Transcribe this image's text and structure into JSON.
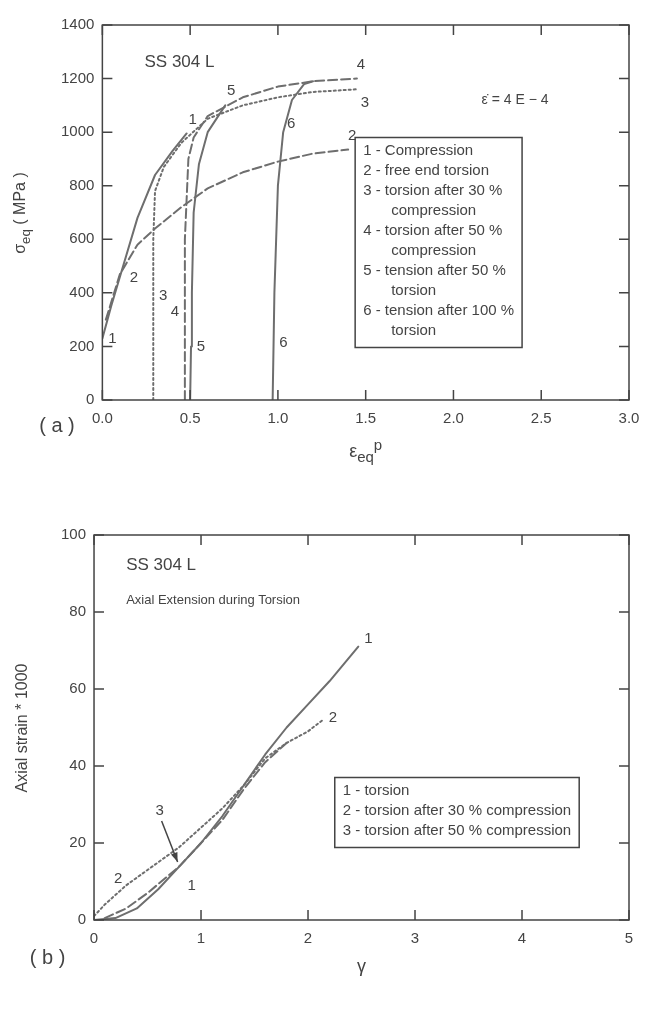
{
  "chart_data": [
    {
      "type": "line",
      "xlabel": "ε$_{eq}$$^{p}$",
      "ylabel": "σ$_{eq}$ ( MPa )",
      "xlim": [
        0,
        3
      ],
      "ylim": [
        0,
        1400
      ],
      "xticks": [
        {
          "value": 0,
          "label": "0.0"
        },
        {
          "value": 0.5,
          "label": "0.5"
        },
        {
          "value": 1,
          "label": "1.0"
        },
        {
          "value": 1.5,
          "label": "1.5"
        },
        {
          "value": 2,
          "label": "2.0"
        },
        {
          "value": 2.5,
          "label": "2.5"
        },
        {
          "value": 3,
          "label": "3.0"
        }
      ],
      "yticks": [
        0,
        200,
        400,
        600,
        800,
        1000,
        1200,
        1400
      ],
      "grid": false,
      "series": [
        {
          "color": "#6e6e6e",
          "line_style": "solid",
          "x": [
            0,
            0.05,
            0.1,
            0.2,
            0.3,
            0.4,
            0.48
          ],
          "values": [
            230,
            350,
            460,
            680,
            840,
            930,
            995
          ]
        },
        {
          "color": "#6e6e6e",
          "line_style": "dashed",
          "x": [
            0.02,
            0.1,
            0.2,
            0.3,
            0.45,
            0.6,
            0.8,
            1.0,
            1.2,
            1.4
          ],
          "values": [
            300,
            470,
            580,
            640,
            720,
            790,
            850,
            890,
            920,
            935
          ]
        },
        {
          "color": "#6e6e6e",
          "line_style": "dotted",
          "x": [
            0.29,
            0.29,
            0.29,
            0.3,
            0.35,
            0.45,
            0.6,
            0.8,
            1.0,
            1.2,
            1.45
          ],
          "values": [
            0,
            390,
            600,
            780,
            870,
            960,
            1050,
            1100,
            1130,
            1150,
            1160
          ]
        },
        {
          "color": "#6e6e6e",
          "line_style": "dashed",
          "x": [
            0.47,
            0.47,
            0.47,
            0.49,
            0.52,
            0.6,
            0.8,
            1.0,
            1.2,
            1.45
          ],
          "values": [
            0,
            330,
            600,
            900,
            980,
            1060,
            1130,
            1170,
            1190,
            1200
          ]
        },
        {
          "color": "#6e6e6e",
          "line_style": "solid",
          "x": [
            0.5,
            0.505,
            0.51,
            0.52,
            0.55,
            0.6,
            0.7
          ],
          "values": [
            0,
            200,
            400,
            700,
            880,
            1000,
            1100
          ]
        },
        {
          "color": "#6e6e6e",
          "line_style": "solid",
          "x": [
            0.97,
            0.975,
            0.98,
            1.0,
            1.03,
            1.08,
            1.15,
            1.2
          ],
          "values": [
            0,
            200,
            400,
            800,
            1000,
            1120,
            1180,
            1190
          ]
        }
      ],
      "annotations": [
        "SS 304 L",
        "ε̇ = 4 E − 4",
        "( a )",
        "1 - Compression",
        "2 - free end torsion",
        "3 - torsion after 30 % compression",
        "4 - torsion after 50 % compression",
        "5 - tension after 50 % torsion",
        "6 - tension after 100 % torsion",
        {
          "text": "1",
          "x": 0,
          "y": 230
        },
        {
          "text": "1",
          "x": 0.48,
          "y": 995
        },
        {
          "text": "2",
          "x": 0.1,
          "y": 470
        },
        {
          "text": "2",
          "x": 1.4,
          "y": 935
        },
        {
          "text": "3",
          "x": 0.29,
          "y": 390
        },
        {
          "text": "3",
          "x": 1.45,
          "y": 1160
        },
        {
          "text": "4",
          "x": 0.47,
          "y": 330
        },
        {
          "text": "4",
          "x": 1.45,
          "y": 1200
        },
        {
          "text": "5",
          "x": 0.505,
          "y": 200
        },
        {
          "text": "5",
          "x": 0.7,
          "y": 1100
        },
        {
          "text": "6",
          "x": 0.975,
          "y": 200
        },
        {
          "text": "6",
          "x": 1.03,
          "y": 1000
        }
      ]
    },
    {
      "type": "line",
      "xlabel": "γ",
      "ylabel": "Axial strain * 1000",
      "xlim": [
        0,
        5
      ],
      "ylim": [
        0,
        100
      ],
      "xticks": [
        0,
        1,
        2,
        3,
        4,
        5
      ],
      "yticks": [
        0,
        20,
        40,
        60,
        80,
        100
      ],
      "grid": false,
      "series": [
        {
          "color": "#6e6e6e",
          "line_style": "solid",
          "x": [
            0,
            0.2,
            0.4,
            0.6,
            0.8,
            1.0,
            1.2,
            1.4,
            1.6,
            1.8,
            2.0,
            2.2,
            2.47
          ],
          "values": [
            0,
            0.5,
            3,
            8,
            14,
            20,
            27,
            35,
            43,
            50,
            56,
            62,
            71
          ]
        },
        {
          "color": "#6e6e6e",
          "line_style": "dotted",
          "x": [
            0,
            0.1,
            0.3,
            0.5,
            0.8,
            1.0,
            1.2,
            1.4,
            1.6,
            1.8,
            2.0,
            2.14
          ],
          "values": [
            1,
            4,
            9,
            13,
            19,
            24,
            29,
            35,
            42,
            46,
            49,
            52
          ]
        },
        {
          "color": "#6e6e6e",
          "line_style": "dashed",
          "x": [
            0.1,
            0.3,
            0.5,
            0.8,
            1.0,
            1.2,
            1.4,
            1.6,
            1.8
          ],
          "values": [
            0.5,
            3,
            7,
            14,
            20,
            26,
            34,
            41,
            46
          ]
        }
      ],
      "annotations": [
        "SS 304 L",
        "Axial Extension during Torsion",
        "( b )",
        "1 - torsion",
        "2 - torsion after 30 % compression",
        "3 - torsion after 50 % compression",
        {
          "text": "1",
          "x": 2.47,
          "y": 71
        },
        {
          "text": "1",
          "x": 0.8,
          "y": 14
        },
        {
          "text": "2",
          "x": 0.3,
          "y": 9
        },
        {
          "text": "2",
          "x": 2.14,
          "y": 52
        },
        {
          "text": "3",
          "x": 0.8,
          "y": 14
        }
      ]
    }
  ]
}
